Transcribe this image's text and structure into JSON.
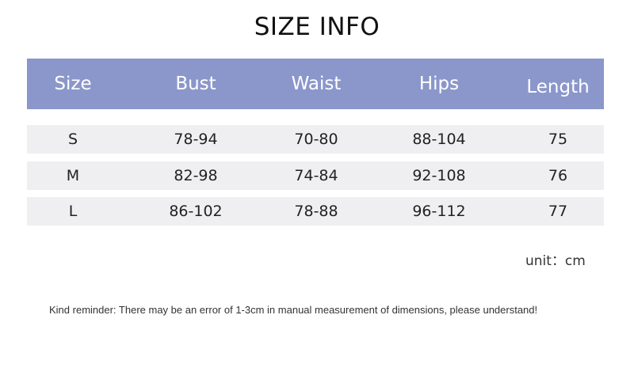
{
  "title": "SIZE INFO",
  "colors": {
    "header_bg": "#8b97cb",
    "row_bg": "#efeff1"
  },
  "table": {
    "headers": [
      "Size",
      "Bust",
      "Waist",
      "Hips",
      "Length"
    ],
    "rows": [
      [
        "S",
        "78-94",
        "70-80",
        "88-104",
        "75"
      ],
      [
        "M",
        "82-98",
        "74-84",
        "92-108",
        "76"
      ],
      [
        "L",
        "86-102",
        "78-88",
        "96-112",
        "77"
      ]
    ]
  },
  "unit": "unit：cm",
  "reminder": "Kind reminder: There may be an error of 1-3cm in manual measurement of dimensions, please understand!"
}
